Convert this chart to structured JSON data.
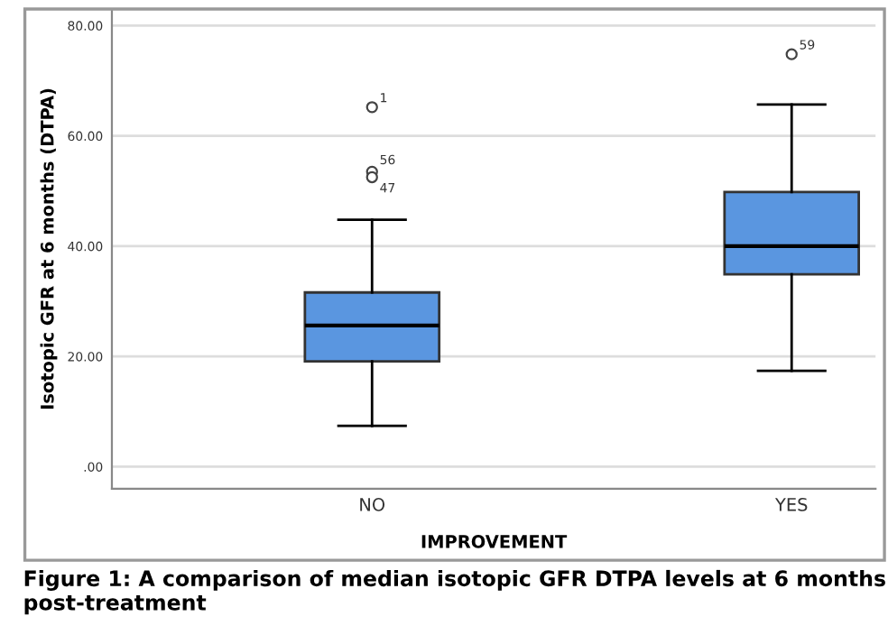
{
  "chart_data": {
    "type": "box",
    "xlabel": "IMPROVEMENT",
    "ylabel": "Isotopic GFR at 6 months (DTPA)",
    "categories": [
      "NO",
      "YES"
    ],
    "boxes": [
      {
        "low": 7.4,
        "q1": 19.1,
        "median": 25.6,
        "q3": 31.6,
        "high": 44.8,
        "outliers": [
          65.2,
          53.5,
          52.5
        ]
      },
      {
        "low": 17.4,
        "q1": 34.9,
        "median": 40.0,
        "q3": 49.8,
        "high": 65.7,
        "outliers": [
          74.8
        ]
      }
    ],
    "color": "#5a96e0",
    "ylim": [
      -4,
      83
    ],
    "yticks": [
      {
        "value": 0,
        "label": ".00"
      },
      {
        "value": 20,
        "label": "20.00"
      },
      {
        "value": 40,
        "label": "40.00"
      },
      {
        "value": 60,
        "label": "60.00"
      },
      {
        "value": 80,
        "label": "80.00"
      }
    ],
    "grid": "y",
    "annotations": [
      "1",
      "56",
      "47",
      "59",
      "Figure 1: A comparison of median isotopic GFR DTPA levels at 6 months post-treatment"
    ]
  }
}
